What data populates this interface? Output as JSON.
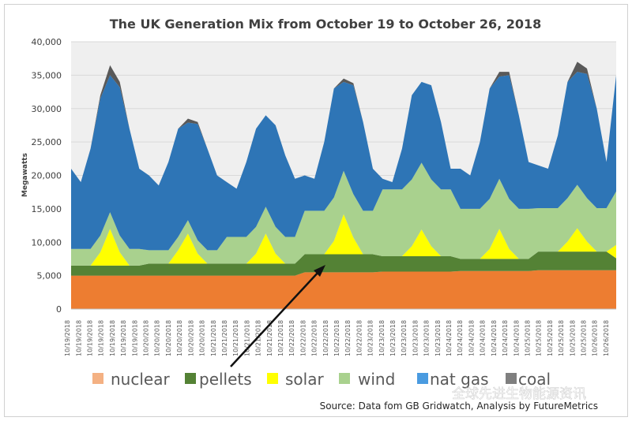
{
  "chart_data": {
    "type": "area",
    "stacked": true,
    "title": "The UK Generation Mix from October 19 to October 26, 2018",
    "xlabel": "",
    "ylabel": "Megawatts",
    "ylim": [
      0,
      40000
    ],
    "yticks": [
      0,
      5000,
      10000,
      15000,
      20000,
      25000,
      30000,
      35000,
      40000
    ],
    "ytick_labels": [
      "0",
      "5,000",
      "10,000",
      "15,000",
      "20,000",
      "25,000",
      "30,000",
      "35,000",
      "40,000"
    ],
    "grid": true,
    "legend_position": "bottom",
    "x_tick_labels": [
      "10/19/2018",
      "10/19/2018",
      "10/19/2018",
      "10/19/2018",
      "10/19/2018",
      "10/19/2018",
      "10/19/2018",
      "10/20/2018",
      "10/20/2018",
      "10/20/2018",
      "10/20/2018",
      "10/20/2018",
      "10/20/2018",
      "10/21/2018",
      "10/21/2018",
      "10/21/2018",
      "10/21/2018",
      "10/21/2018",
      "10/21/2018",
      "10/21/2018",
      "10/22/2018",
      "10/22/2018",
      "10/22/2018",
      "10/22/2018",
      "10/22/2018",
      "10/22/2018",
      "10/22/2018",
      "10/23/2018",
      "10/23/2018",
      "10/23/2018",
      "10/23/2018",
      "10/23/2018",
      "10/23/2018",
      "10/23/2018",
      "10/24/2018",
      "10/24/2018",
      "10/24/2018",
      "10/24/2018",
      "10/24/2018",
      "10/24/2018",
      "10/24/2018",
      "10/25/2018",
      "10/25/2018",
      "10/25/2018",
      "10/25/2018",
      "10/25/2018",
      "10/25/2018",
      "10/26/2018",
      "10/26/2018"
    ],
    "x_sampling": "3-hour steps from 10/19 to 10/26",
    "series": [
      {
        "name": "nuclear",
        "color": "#ED7D31",
        "values": [
          5000,
          5000,
          5000,
          5000,
          5000,
          5000,
          5000,
          5000,
          5000,
          5000,
          5000,
          5000,
          5000,
          5000,
          5000,
          5000,
          5000,
          5000,
          5000,
          5000,
          5000,
          5000,
          5000,
          5000,
          5500,
          5500,
          5500,
          5500,
          5500,
          5500,
          5500,
          5500,
          5600,
          5600,
          5600,
          5600,
          5600,
          5600,
          5600,
          5600,
          5700,
          5700,
          5700,
          5700,
          5700,
          5700,
          5700,
          5700,
          5800,
          5800,
          5800,
          5800,
          5800,
          5800,
          5800,
          5800,
          5800
        ]
      },
      {
        "name": "pellets",
        "color": "#548235",
        "values": [
          1500,
          1500,
          1500,
          1500,
          1500,
          1500,
          1500,
          1500,
          1800,
          1800,
          1800,
          1800,
          1800,
          1800,
          1800,
          1800,
          1800,
          1800,
          1800,
          1800,
          1800,
          1800,
          1800,
          1800,
          2700,
          2700,
          2700,
          2700,
          2700,
          2700,
          2700,
          2700,
          2300,
          2300,
          2300,
          2300,
          2300,
          2300,
          2300,
          2300,
          1800,
          1800,
          1800,
          1800,
          1800,
          1800,
          1800,
          1800,
          2800,
          2800,
          2800,
          2800,
          2800,
          2800,
          2800,
          2800,
          1800
        ]
      },
      {
        "name": "solar",
        "color": "#FFFF00",
        "values": [
          0,
          0,
          0,
          2000,
          5500,
          2000,
          0,
          0,
          0,
          0,
          0,
          2000,
          4500,
          1500,
          0,
          0,
          0,
          0,
          0,
          1500,
          4500,
          1500,
          0,
          0,
          0,
          0,
          0,
          2000,
          6000,
          2500,
          0,
          0,
          0,
          0,
          0,
          1500,
          4000,
          1500,
          0,
          0,
          0,
          0,
          0,
          1500,
          4500,
          1500,
          0,
          0,
          0,
          0,
          0,
          1500,
          3500,
          1500,
          0,
          0,
          2000
        ]
      },
      {
        "name": "wind",
        "color": "#A9D18E",
        "values": [
          2500,
          2500,
          2500,
          2500,
          2500,
          2500,
          2500,
          2500,
          2000,
          2000,
          2000,
          2000,
          2000,
          2000,
          2000,
          2000,
          4000,
          4000,
          4000,
          4000,
          4000,
          4000,
          4000,
          4000,
          6500,
          6500,
          6500,
          6500,
          6500,
          6500,
          6500,
          6500,
          10000,
          10000,
          10000,
          10000,
          10000,
          10000,
          10000,
          10000,
          7500,
          7500,
          7500,
          7500,
          7500,
          7500,
          7500,
          7500,
          6500,
          6500,
          6500,
          6500,
          6500,
          6500,
          6500,
          6500,
          8000
        ]
      },
      {
        "name": "nat gas",
        "color": "#2E75B6",
        "values": [
          12000,
          10000,
          15000,
          20500,
          20500,
          22200,
          18000,
          12000,
          11200,
          9700,
          13200,
          16200,
          14600,
          17400,
          15200,
          11200,
          8200,
          7200,
          11200,
          14700,
          13700,
          15200,
          12200,
          8700,
          5300,
          4800,
          10300,
          16300,
          13300,
          16300,
          13300,
          6300,
          1600,
          1100,
          6100,
          12600,
          12100,
          14100,
          10100,
          3100,
          6000,
          5000,
          10000,
          16500,
          15300,
          18500,
          14000,
          7000,
          6400,
          5900,
          10900,
          17400,
          16900,
          18600,
          14900,
          6900,
          17400
        ]
      },
      {
        "name": "coal",
        "color": "#595959",
        "values": [
          0,
          0,
          0,
          500,
          1500,
          800,
          0,
          0,
          0,
          0,
          0,
          0,
          600,
          300,
          0,
          0,
          0,
          0,
          0,
          0,
          0,
          0,
          0,
          0,
          0,
          0,
          0,
          0,
          500,
          300,
          0,
          0,
          0,
          0,
          0,
          0,
          0,
          0,
          0,
          0,
          0,
          0,
          0,
          0,
          700,
          500,
          0,
          0,
          0,
          0,
          0,
          0,
          1500,
          800,
          0,
          0,
          0
        ]
      }
    ],
    "annotations": [
      {
        "type": "arrow",
        "points_to": "pellets",
        "text": ""
      }
    ]
  },
  "legend": {
    "nuclear": "nuclear",
    "pellets": "pellets",
    "solar": "solar",
    "wind": "wind",
    "gas": "nat gas",
    "coal": "coal"
  },
  "source": "Source: Data fom GB Gridwatch, Analysis by FutureMetrics",
  "watermark": "全球先进生物能源资讯",
  "colors": {
    "legend_nuclear": "#F4B183",
    "legend_gas": "#4A9BE0",
    "legend_coal": "#7F7F7F",
    "plot_bg": "#EFEFEF",
    "grid": "#D9D9D9"
  }
}
